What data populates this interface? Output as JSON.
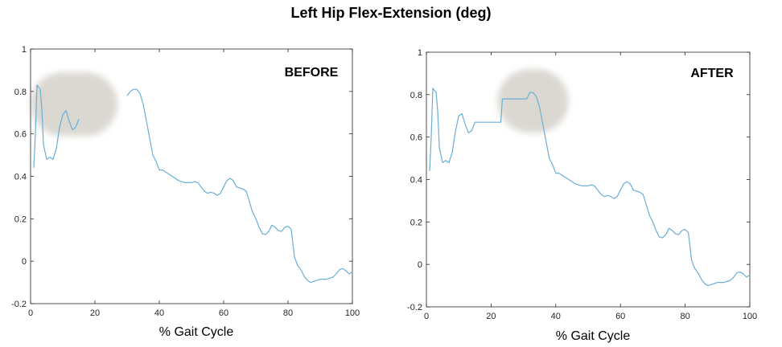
{
  "title": "Left Hip Flex-Extension (deg)",
  "chart_data": [
    {
      "type": "line",
      "panel_label": "BEFORE",
      "xlabel": "% Gait Cycle",
      "ylabel": "",
      "xlim": [
        0,
        100
      ],
      "ylim": [
        -0.2,
        1
      ],
      "xticks": [
        0,
        20,
        40,
        60,
        80,
        100
      ],
      "yticks": [
        -0.2,
        0,
        0.2,
        0.4,
        0.6,
        0.8,
        1
      ],
      "grid": false,
      "line_color": "#6aaed6",
      "highlight_color": "#d9d6d0",
      "highlight_region": {
        "x": [
          0,
          27
        ],
        "y": [
          0.59,
          0.89
        ]
      },
      "segments": [
        [
          [
            1,
            0.44
          ],
          [
            1.5,
            0.6
          ],
          [
            2,
            0.83
          ],
          [
            3,
            0.81
          ],
          [
            3.5,
            0.72
          ],
          [
            4,
            0.55
          ],
          [
            5,
            0.48
          ],
          [
            6,
            0.49
          ],
          [
            7,
            0.48
          ],
          [
            8,
            0.53
          ],
          [
            9,
            0.63
          ],
          [
            10,
            0.69
          ],
          [
            11,
            0.71
          ],
          [
            12,
            0.66
          ],
          [
            13,
            0.62
          ],
          [
            14,
            0.63
          ],
          [
            15,
            0.67
          ]
        ],
        [
          [
            30,
            0.78
          ],
          [
            31,
            0.8
          ],
          [
            32,
            0.81
          ],
          [
            33,
            0.81
          ],
          [
            34,
            0.79
          ],
          [
            35,
            0.74
          ],
          [
            36,
            0.66
          ],
          [
            37,
            0.58
          ],
          [
            38,
            0.5
          ],
          [
            39,
            0.47
          ],
          [
            40,
            0.43
          ],
          [
            41,
            0.43
          ],
          [
            42,
            0.42
          ],
          [
            44,
            0.4
          ],
          [
            46,
            0.38
          ],
          [
            48,
            0.37
          ],
          [
            50,
            0.37
          ],
          [
            51,
            0.375
          ],
          [
            52,
            0.37
          ],
          [
            53,
            0.35
          ],
          [
            54,
            0.33
          ],
          [
            55,
            0.32
          ],
          [
            56,
            0.325
          ],
          [
            57,
            0.32
          ],
          [
            58,
            0.31
          ],
          [
            59,
            0.32
          ],
          [
            60,
            0.35
          ],
          [
            61,
            0.38
          ],
          [
            62,
            0.39
          ],
          [
            63,
            0.38
          ],
          [
            64,
            0.35
          ],
          [
            66,
            0.34
          ],
          [
            67,
            0.33
          ],
          [
            68,
            0.28
          ],
          [
            69,
            0.23
          ],
          [
            70,
            0.2
          ],
          [
            71,
            0.16
          ],
          [
            72,
            0.13
          ],
          [
            73,
            0.125
          ],
          [
            74,
            0.14
          ],
          [
            75,
            0.17
          ],
          [
            76,
            0.16
          ],
          [
            77,
            0.145
          ],
          [
            78,
            0.14
          ],
          [
            79,
            0.16
          ],
          [
            80,
            0.165
          ],
          [
            81,
            0.15
          ],
          [
            82,
            0.02
          ],
          [
            83,
            -0.02
          ],
          [
            84,
            -0.04
          ],
          [
            85,
            -0.07
          ],
          [
            86,
            -0.09
          ],
          [
            87,
            -0.1
          ],
          [
            88,
            -0.095
          ],
          [
            89,
            -0.09
          ],
          [
            90,
            -0.085
          ],
          [
            92,
            -0.085
          ],
          [
            94,
            -0.075
          ],
          [
            95,
            -0.06
          ],
          [
            96,
            -0.04
          ],
          [
            97,
            -0.035
          ],
          [
            98,
            -0.045
          ],
          [
            99,
            -0.06
          ],
          [
            100,
            -0.05
          ]
        ]
      ]
    },
    {
      "type": "line",
      "panel_label": "AFTER",
      "xlabel": "% Gait Cycle",
      "ylabel": "",
      "xlim": [
        0,
        100
      ],
      "ylim": [
        -0.2,
        1
      ],
      "xticks": [
        0,
        20,
        40,
        60,
        80,
        100
      ],
      "yticks": [
        -0.2,
        0,
        0.2,
        0.4,
        0.6,
        0.8,
        1
      ],
      "grid": false,
      "line_color": "#6aaed6",
      "highlight_color": "#d9d6d0",
      "highlight_region": {
        "x": [
          22,
          44
        ],
        "y": [
          0.62,
          0.92
        ]
      },
      "segments": [
        [
          [
            1,
            0.44
          ],
          [
            1.5,
            0.6
          ],
          [
            2,
            0.83
          ],
          [
            3,
            0.81
          ],
          [
            3.5,
            0.72
          ],
          [
            4,
            0.55
          ],
          [
            5,
            0.48
          ],
          [
            6,
            0.49
          ],
          [
            7,
            0.48
          ],
          [
            8,
            0.53
          ],
          [
            9,
            0.63
          ],
          [
            10,
            0.7
          ],
          [
            11,
            0.71
          ],
          [
            12,
            0.66
          ],
          [
            13,
            0.62
          ],
          [
            14,
            0.63
          ],
          [
            15,
            0.67
          ],
          [
            23,
            0.67
          ],
          [
            23.5,
            0.78
          ],
          [
            31,
            0.78
          ],
          [
            32,
            0.81
          ],
          [
            33,
            0.81
          ],
          [
            34,
            0.79
          ],
          [
            35,
            0.74
          ],
          [
            36,
            0.66
          ],
          [
            37,
            0.58
          ],
          [
            38,
            0.5
          ],
          [
            39,
            0.47
          ],
          [
            40,
            0.43
          ],
          [
            41,
            0.43
          ],
          [
            42,
            0.42
          ],
          [
            44,
            0.4
          ],
          [
            46,
            0.38
          ],
          [
            48,
            0.37
          ],
          [
            50,
            0.37
          ],
          [
            51,
            0.375
          ],
          [
            52,
            0.37
          ],
          [
            53,
            0.35
          ],
          [
            54,
            0.33
          ],
          [
            55,
            0.32
          ],
          [
            56,
            0.325
          ],
          [
            57,
            0.32
          ],
          [
            58,
            0.31
          ],
          [
            59,
            0.32
          ],
          [
            60,
            0.35
          ],
          [
            61,
            0.38
          ],
          [
            62,
            0.39
          ],
          [
            63,
            0.38
          ],
          [
            64,
            0.35
          ],
          [
            66,
            0.34
          ],
          [
            67,
            0.33
          ],
          [
            68,
            0.28
          ],
          [
            69,
            0.23
          ],
          [
            70,
            0.2
          ],
          [
            71,
            0.16
          ],
          [
            72,
            0.13
          ],
          [
            73,
            0.125
          ],
          [
            74,
            0.14
          ],
          [
            75,
            0.17
          ],
          [
            76,
            0.16
          ],
          [
            77,
            0.145
          ],
          [
            78,
            0.14
          ],
          [
            79,
            0.16
          ],
          [
            80,
            0.165
          ],
          [
            81,
            0.15
          ],
          [
            82,
            0.02
          ],
          [
            83,
            -0.02
          ],
          [
            84,
            -0.04
          ],
          [
            85,
            -0.07
          ],
          [
            86,
            -0.09
          ],
          [
            87,
            -0.1
          ],
          [
            88,
            -0.095
          ],
          [
            89,
            -0.09
          ],
          [
            90,
            -0.085
          ],
          [
            92,
            -0.085
          ],
          [
            94,
            -0.075
          ],
          [
            95,
            -0.06
          ],
          [
            96,
            -0.04
          ],
          [
            97,
            -0.035
          ],
          [
            98,
            -0.045
          ],
          [
            99,
            -0.06
          ],
          [
            100,
            -0.05
          ]
        ]
      ]
    }
  ]
}
